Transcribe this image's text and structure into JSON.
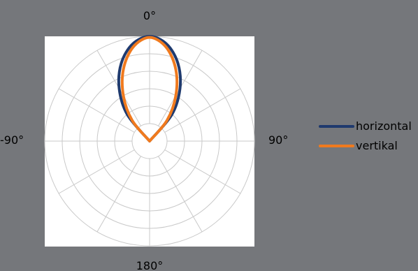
{
  "chart_data": {
    "type": "polar",
    "angle_labels": {
      "top": "0°",
      "right": "90°",
      "bottom": "180°",
      "left": "-90°"
    },
    "grid": true,
    "grid_rings": 6,
    "grid_spoke_step_deg": 30,
    "legend_position": "right",
    "series": [
      {
        "name": "horizontal",
        "color": "#1f3a6e",
        "angles_deg": [
          -50,
          -40,
          -30,
          -20,
          -10,
          0,
          10,
          20,
          30,
          40,
          50
        ],
        "radii": [
          0.0,
          0.33,
          0.58,
          0.79,
          0.94,
          1.0,
          0.94,
          0.79,
          0.58,
          0.33,
          0.0
        ]
      },
      {
        "name": "vertikal",
        "color": "#f07a1e",
        "angles_deg": [
          -50,
          -40,
          -30,
          -20,
          -10,
          0,
          10,
          20,
          30,
          40,
          50
        ],
        "radii": [
          0.0,
          0.26,
          0.5,
          0.73,
          0.91,
          0.99,
          0.91,
          0.73,
          0.5,
          0.26,
          0.0
        ]
      }
    ]
  }
}
